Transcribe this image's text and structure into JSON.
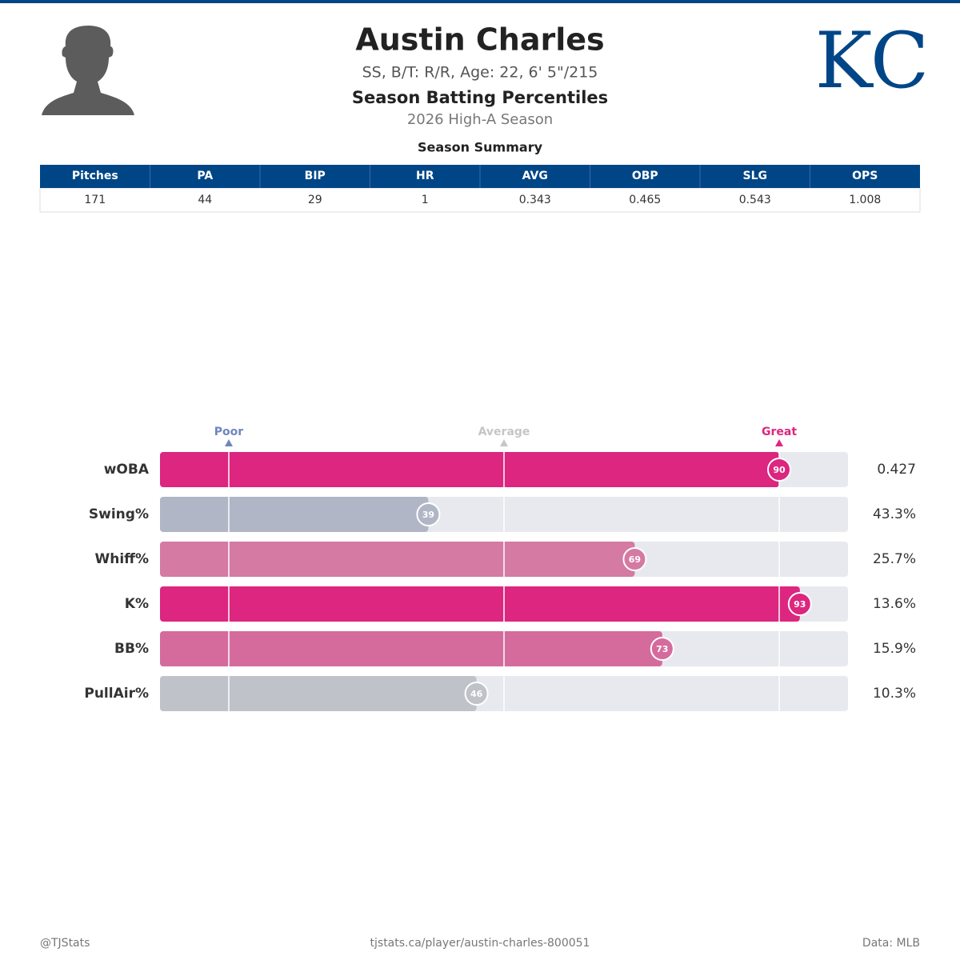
{
  "header": {
    "name": "Austin Charles",
    "bio": "SS, B/T: R/R, Age: 22, 6' 5\"/215",
    "title": "Season Batting Percentiles",
    "subtitle": "2026 High-A Season",
    "logo": "KC"
  },
  "table": {
    "title": "Season Summary",
    "columns": [
      "Pitches",
      "PA",
      "BIP",
      "HR",
      "AVG",
      "OBP",
      "SLG",
      "OPS"
    ],
    "rows": [
      [
        171,
        44,
        29,
        1,
        0.343,
        0.465,
        0.543,
        1.008
      ]
    ]
  },
  "chart_data": {
    "type": "bar",
    "orientation": "horizontal",
    "categories": [
      "wOBA",
      "Swing%",
      "Whiff%",
      "K%",
      "BB%",
      "PullAir%"
    ],
    "values": [
      90,
      39,
      69,
      93,
      73,
      46
    ],
    "colors": [
      "#dc267f",
      "#b0b6c6",
      "#d47aa3",
      "#dc267f",
      "#d56b9c",
      "#bfc2c9"
    ],
    "stat_labels": [
      "0.427",
      "43.3%",
      "25.7%",
      "13.6%",
      "15.9%",
      "10.3%"
    ],
    "xlim": [
      0,
      100
    ],
    "markers": [
      {
        "label": "Poor",
        "value": 10,
        "color": "#6f86bb"
      },
      {
        "label": "Average",
        "value": 50,
        "color": "#c6c6c6"
      },
      {
        "label": "Great",
        "value": 90,
        "color": "#dc267f"
      }
    ]
  },
  "footer": {
    "left": "@TJStats",
    "center": "tjstats.ca/player/austin-charles-800051",
    "right": "Data: MLB"
  }
}
